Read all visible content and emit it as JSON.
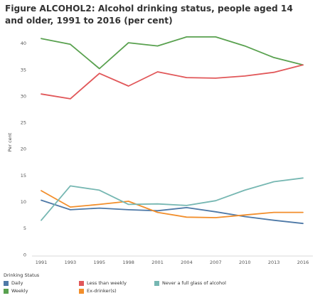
{
  "title": "Figure ALCOHOL2: Alcohol drinking status, people aged 14 and older, 1991 to 2016 (per cent)",
  "legend_title": "Drinking Status",
  "chart_data": {
    "type": "line",
    "title": "Figure ALCOHOL2: Alcohol drinking status, people aged 14 and older, 1991 to 2016 (per cent)",
    "xlabel": "",
    "ylabel": "Per cent",
    "categories": [
      "1991",
      "1993",
      "1995",
      "1998",
      "2001",
      "2004",
      "2007",
      "2010",
      "2013",
      "2016"
    ],
    "yticks": [
      0,
      5,
      10,
      15,
      20,
      25,
      30,
      35,
      40
    ],
    "ylim": [
      0,
      42
    ],
    "grid": false,
    "legend_position": "bottom",
    "series": [
      {
        "name": "Daily",
        "color": "#4e79a7",
        "values": [
          10.3,
          8.5,
          8.8,
          8.5,
          8.3,
          8.9,
          8.1,
          7.2,
          6.5,
          5.9
        ]
      },
      {
        "name": "Weekly",
        "color": "#59a14f",
        "values": [
          40.9,
          39.8,
          35.2,
          40.1,
          39.5,
          41.2,
          41.2,
          39.5,
          37.3,
          35.9
        ]
      },
      {
        "name": "Less than weekly",
        "color": "#e15759",
        "values": [
          30.4,
          29.5,
          34.3,
          31.9,
          34.6,
          33.5,
          33.4,
          33.8,
          34.5,
          35.9
        ]
      },
      {
        "name": "Ex-drinker(s)",
        "color": "#f28e2b",
        "values": [
          12.1,
          9.0,
          9.5,
          10.1,
          8.0,
          7.1,
          7.0,
          7.5,
          8.0,
          8.0
        ]
      },
      {
        "name": "Never a full glass of alcohol",
        "color": "#76b7b2",
        "values": [
          6.5,
          13.0,
          12.2,
          9.5,
          9.6,
          9.3,
          10.2,
          12.2,
          13.8,
          14.5
        ]
      }
    ]
  }
}
